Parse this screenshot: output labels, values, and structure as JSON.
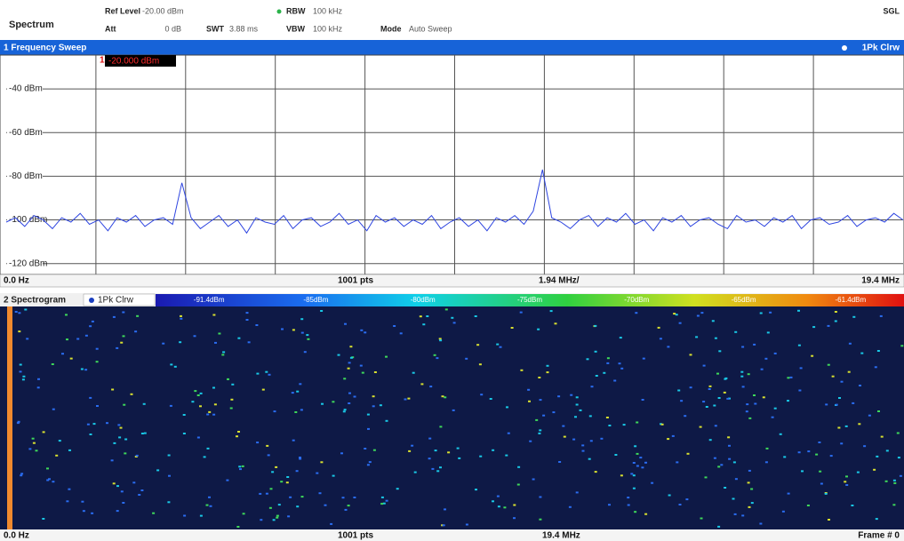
{
  "header": {
    "title": "Spectrum",
    "ref_level_label": "Ref Level",
    "ref_level": "-20.00 dBm",
    "att_label": "Att",
    "att": "0 dB",
    "swt_label": "SWT",
    "swt": "3.88 ms",
    "rbw_label": "RBW",
    "rbw": "100 kHz",
    "vbw_label": "VBW",
    "vbw": "100 kHz",
    "mode_label": "Mode",
    "mode": "Auto Sweep",
    "status": "SGL"
  },
  "chart_data": {
    "type": "line",
    "title": "1 Frequency Sweep",
    "marker_index": "1",
    "marker_label": "-20.000 dBm",
    "x": [
      0.0,
      0.2,
      0.4,
      0.6,
      0.8,
      1.0,
      1.2,
      1.4,
      1.6,
      1.8,
      2.0,
      2.2,
      2.4,
      2.6,
      2.8,
      3.0,
      3.2,
      3.4,
      3.6,
      3.8,
      4.0,
      4.2,
      4.4,
      4.6,
      4.8,
      5.0,
      5.2,
      5.4,
      5.6,
      5.8,
      6.0,
      6.2,
      6.4,
      6.6,
      6.8,
      7.0,
      7.2,
      7.4,
      7.6,
      7.8,
      8.0,
      8.2,
      8.4,
      8.6,
      8.8,
      9.0,
      9.2,
      9.4,
      9.6,
      9.8,
      10.0,
      10.2,
      10.4,
      10.6,
      10.8,
      11.0,
      11.2,
      11.4,
      11.6,
      11.8,
      12.0,
      12.2,
      12.4,
      12.6,
      12.8,
      13.0,
      13.2,
      13.4,
      13.6,
      13.8,
      14.0,
      14.2,
      14.4,
      14.6,
      14.8,
      15.0,
      15.2,
      15.4,
      15.6,
      15.8,
      16.0,
      16.2,
      16.4,
      16.6,
      16.8,
      17.0,
      17.2,
      17.4,
      17.6,
      17.8,
      18.0,
      18.2,
      18.4,
      18.6,
      18.8,
      19.0,
      19.2,
      19.4
    ],
    "series": [
      {
        "name": "1Pk Clrw",
        "color": "#2e45e0",
        "values": [
          -101,
          -99,
          -103,
          -98,
          -100,
          -104,
          -99,
          -101,
          -97,
          -102,
          -100,
          -105,
          -99,
          -101,
          -98,
          -103,
          -100,
          -99,
          -102,
          -83,
          -99,
          -104,
          -101,
          -98,
          -103,
          -100,
          -106,
          -99,
          -101,
          -102,
          -98,
          -104,
          -100,
          -99,
          -103,
          -101,
          -97,
          -102,
          -100,
          -105,
          -98,
          -101,
          -99,
          -103,
          -100,
          -102,
          -98,
          -104,
          -101,
          -99,
          -103,
          -100,
          -105,
          -99,
          -101,
          -98,
          -102,
          -96,
          -77,
          -99,
          -101,
          -104,
          -100,
          -98,
          -103,
          -99,
          -101,
          -97,
          -102,
          -100,
          -105,
          -99,
          -101,
          -98,
          -103,
          -100,
          -99,
          -102,
          -104,
          -98,
          -101,
          -100,
          -103,
          -99,
          -101,
          -98,
          -104,
          -100,
          -99,
          -102,
          -101,
          -98,
          -103,
          -100,
          -99,
          -101,
          -97,
          -100
        ]
      }
    ],
    "xlim": [
      0,
      19.4
    ],
    "ylim": [
      -125,
      -24.5
    ],
    "xticks": [
      {
        "value": 0,
        "label": "0.0 Hz"
      },
      {
        "value": 19.4,
        "label": "19.4 MHz"
      }
    ],
    "xgrid": [
      1.94,
      3.88,
      5.82,
      7.76,
      9.7,
      11.64,
      13.58,
      15.52,
      17.46
    ],
    "yticks": [
      {
        "value": -40,
        "label": "-40 dBm"
      },
      {
        "value": -60,
        "label": "-60 dBm"
      },
      {
        "value": -80,
        "label": "-80 dBm"
      },
      {
        "value": -100,
        "label": "-100 dBm"
      },
      {
        "value": -120,
        "label": "-120 dBm"
      }
    ],
    "points_label": "1001 pts",
    "span_per_div": "1.94 MHz/",
    "grid": true
  },
  "spectrogram": {
    "title": "2 Spectrogram",
    "trace_label": "1Pk Clrw",
    "colorbar": [
      "-91.4dBm",
      "-85dBm",
      "-80dBm",
      "-75dBm",
      "-70dBm",
      "-65dBm",
      "-61.4dBm"
    ],
    "start": "0.0 Hz",
    "points": "1001 pts",
    "stop": "19.4 MHz",
    "frame": "Frame # 0"
  }
}
